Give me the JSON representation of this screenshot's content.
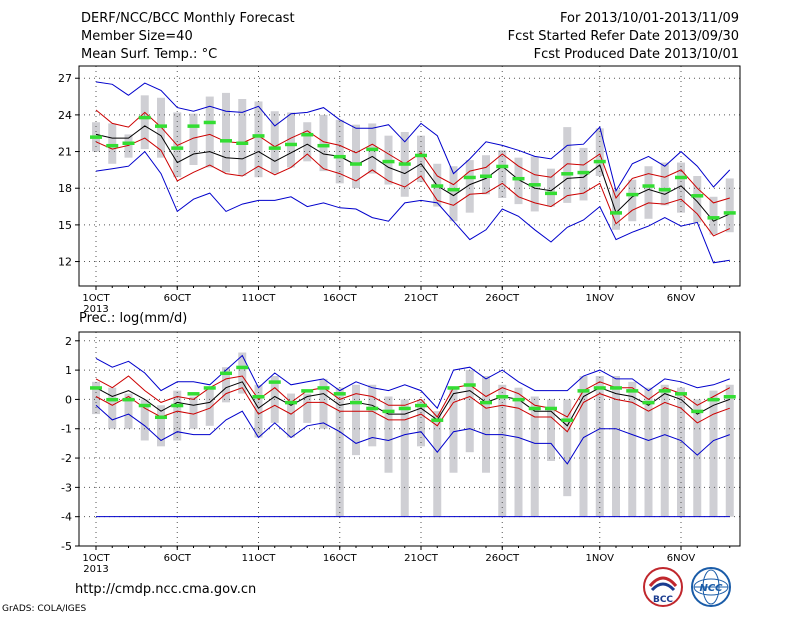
{
  "header": {
    "title": "DERF/NCC/BCC Monthly Forecast",
    "member": "Member Size=40",
    "variable": "Mean Surf. Temp.: °C",
    "period": "For 2013/10/01-2013/11/09",
    "refer": "Fcst Started Refer Date 2013/09/30",
    "produced": "Fcst Produced Date 2013/10/01"
  },
  "footer": {
    "url": "http://cmdp.ncc.cma.gov.cn",
    "grads": "GrADS: COLA/IGES",
    "logo_left": "BCC",
    "logo_right": "NCC"
  },
  "colors": {
    "envelope": "#0000cc",
    "spread": "#cc0000",
    "mean": "#000000",
    "median": "#33dd33",
    "range_bar": "#cfcfd4"
  },
  "chart_data": [
    {
      "type": "line",
      "name": "temperature",
      "title": "",
      "ylabel": "",
      "ylim": [
        10,
        28
      ],
      "yticks": [
        12,
        15,
        18,
        21,
        24,
        27
      ],
      "x": [
        1,
        2,
        3,
        4,
        5,
        6,
        7,
        8,
        9,
        10,
        11,
        12,
        13,
        14,
        15,
        16,
        17,
        18,
        19,
        20,
        21,
        22,
        23,
        24,
        25,
        26,
        27,
        28,
        29,
        30,
        31,
        32,
        33,
        34,
        35,
        36,
        37,
        38,
        39,
        40
      ],
      "xticks": [
        {
          "x": 1,
          "label": "1OCT",
          "year": "2013"
        },
        {
          "x": 6,
          "label": "6OCT"
        },
        {
          "x": 11,
          "label": "11OCT"
        },
        {
          "x": 16,
          "label": "16OCT"
        },
        {
          "x": 21,
          "label": "21OCT"
        },
        {
          "x": 26,
          "label": "26OCT"
        },
        {
          "x": 32,
          "label": "1NOV"
        },
        {
          "x": 37,
          "label": "6NOV"
        }
      ],
      "series": {
        "max": [
          26.7,
          26.5,
          25.6,
          26.6,
          26.0,
          24.6,
          24.3,
          24.7,
          24.3,
          24.2,
          24.7,
          23.1,
          24.1,
          24.2,
          24.6,
          23.6,
          22.9,
          22.9,
          23.2,
          21.8,
          23.3,
          22.3,
          19.2,
          20.4,
          21.8,
          21.5,
          21.1,
          20.6,
          20.4,
          21.5,
          21.6,
          23.0,
          17.8,
          20.0,
          20.6,
          19.8,
          21.0,
          19.8,
          18.1,
          19.5
        ],
        "upper": [
          24.4,
          23.3,
          23.0,
          24.2,
          23.0,
          21.5,
          22.1,
          22.4,
          21.8,
          21.7,
          22.3,
          21.4,
          22.1,
          22.7,
          21.8,
          21.5,
          20.9,
          21.6,
          20.8,
          20.0,
          20.9,
          19.0,
          18.3,
          19.4,
          19.7,
          20.8,
          19.8,
          19.1,
          18.9,
          20.0,
          19.9,
          20.8,
          17.2,
          18.8,
          19.2,
          18.9,
          19.5,
          18.0,
          16.8,
          17.2
        ],
        "mean": [
          22.4,
          22.1,
          22.1,
          23.1,
          22.3,
          20.1,
          20.8,
          21.0,
          20.5,
          20.4,
          21.0,
          20.2,
          20.9,
          21.6,
          20.8,
          20.6,
          19.9,
          20.6,
          19.7,
          19.2,
          20.0,
          18.2,
          17.4,
          18.3,
          18.8,
          19.8,
          18.7,
          18.0,
          17.8,
          18.8,
          18.9,
          19.9,
          16.0,
          17.3,
          17.9,
          17.5,
          18.2,
          16.9,
          15.3,
          15.9
        ],
        "lower": [
          21.8,
          21.2,
          21.5,
          22.1,
          21.1,
          18.6,
          19.3,
          19.9,
          19.2,
          19.0,
          19.8,
          19.1,
          19.7,
          20.8,
          19.6,
          19.2,
          18.6,
          19.5,
          18.6,
          18.1,
          19.0,
          17.0,
          16.6,
          17.5,
          17.6,
          18.4,
          17.3,
          16.8,
          16.5,
          17.4,
          17.6,
          18.4,
          15.1,
          16.2,
          16.8,
          16.7,
          17.1,
          15.9,
          14.1,
          14.7
        ],
        "min": [
          19.4,
          19.6,
          19.8,
          21.0,
          19.2,
          16.1,
          17.1,
          17.6,
          16.1,
          16.7,
          17.0,
          17.0,
          17.3,
          16.5,
          16.8,
          16.4,
          16.3,
          15.6,
          15.3,
          16.8,
          17.0,
          16.8,
          15.3,
          13.8,
          14.6,
          16.3,
          15.7,
          14.6,
          13.6,
          14.8,
          15.4,
          16.5,
          13.8,
          14.4,
          14.9,
          15.6,
          14.9,
          15.2,
          11.9,
          12.1
        ],
        "bar_top": [
          23.4,
          23.3,
          22.4,
          25.6,
          25.4,
          24.2,
          24.1,
          25.5,
          25.8,
          25.3,
          25.1,
          24.3,
          24.2,
          23.4,
          24.0,
          23.6,
          23.2,
          23.3,
          22.3,
          22.6,
          22.3,
          20.0,
          19.8,
          20.3,
          20.7,
          21.1,
          20.5,
          20.6,
          19.6,
          23.0,
          21.3,
          22.9,
          17.9,
          18.7,
          19.8,
          20.1,
          20.1,
          19.0,
          17.3,
          18.8
        ],
        "bar_bottom": [
          21.0,
          20.0,
          20.5,
          21.2,
          20.5,
          18.9,
          19.9,
          19.7,
          19.3,
          19.0,
          18.9,
          19.2,
          19.7,
          20.2,
          19.4,
          18.4,
          18.0,
          19.2,
          18.3,
          17.3,
          18.5,
          16.5,
          15.3,
          16.0,
          17.5,
          17.2,
          16.7,
          16.1,
          16.5,
          16.8,
          17.0,
          19.0,
          14.6,
          15.3,
          15.5,
          16.6,
          16.0,
          15.2,
          14.2,
          14.4
        ],
        "median": [
          22.2,
          21.5,
          21.7,
          23.8,
          23.1,
          21.3,
          23.1,
          23.4,
          21.9,
          21.7,
          22.3,
          21.3,
          21.6,
          22.4,
          21.5,
          20.6,
          20.0,
          21.2,
          20.2,
          20.0,
          20.7,
          18.2,
          17.9,
          18.9,
          19.0,
          19.8,
          18.8,
          18.3,
          17.6,
          19.2,
          19.3,
          20.2,
          16.0,
          17.5,
          18.2,
          17.9,
          18.9,
          17.4,
          15.6,
          16.0
        ]
      }
    },
    {
      "type": "line",
      "name": "precipitation",
      "title": "Prec.: log(mm/d)",
      "ylabel": "",
      "ylim": [
        -5,
        2.3
      ],
      "yticks": [
        -5,
        -4,
        -3,
        -2,
        -1,
        0,
        1,
        2
      ],
      "x": [
        1,
        2,
        3,
        4,
        5,
        6,
        7,
        8,
        9,
        10,
        11,
        12,
        13,
        14,
        15,
        16,
        17,
        18,
        19,
        20,
        21,
        22,
        23,
        24,
        25,
        26,
        27,
        28,
        29,
        30,
        31,
        32,
        33,
        34,
        35,
        36,
        37,
        38,
        39,
        40
      ],
      "xticks": [
        {
          "x": 1,
          "label": "1OCT",
          "year": "2013"
        },
        {
          "x": 6,
          "label": "6OCT"
        },
        {
          "x": 11,
          "label": "11OCT"
        },
        {
          "x": 16,
          "label": "16OCT"
        },
        {
          "x": 21,
          "label": "21OCT"
        },
        {
          "x": 26,
          "label": "26OCT"
        },
        {
          "x": 32,
          "label": "1NOV"
        },
        {
          "x": 37,
          "label": "6NOV"
        }
      ],
      "series": {
        "max": [
          1.4,
          1.1,
          1.3,
          0.9,
          0.3,
          0.6,
          0.6,
          0.5,
          1.0,
          1.5,
          0.4,
          0.9,
          0.5,
          0.6,
          0.7,
          0.3,
          0.6,
          0.4,
          0.3,
          0.5,
          0.3,
          -0.3,
          1.0,
          1.1,
          0.7,
          1.0,
          0.6,
          0.3,
          0.3,
          0.3,
          0.8,
          1.0,
          0.7,
          0.7,
          0.3,
          0.7,
          0.6,
          0.4,
          0.5,
          0.7
        ],
        "upper": [
          0.7,
          0.4,
          0.8,
          0.3,
          -0.1,
          0.1,
          0.0,
          0.4,
          0.7,
          0.8,
          0.0,
          0.4,
          -0.1,
          0.3,
          0.4,
          0.0,
          0.2,
          0.1,
          -0.2,
          -0.2,
          0.0,
          -0.6,
          0.4,
          0.5,
          0.1,
          0.4,
          0.2,
          -0.2,
          -0.3,
          -0.6,
          0.3,
          0.6,
          0.4,
          0.4,
          0.0,
          0.4,
          0.2,
          -0.2,
          0.1,
          0.4
        ],
        "mean": [
          0.4,
          0.1,
          0.3,
          0.0,
          -0.4,
          -0.1,
          -0.2,
          -0.1,
          0.4,
          0.6,
          -0.3,
          0.1,
          -0.2,
          0.1,
          0.2,
          -0.2,
          -0.1,
          -0.2,
          -0.5,
          -0.5,
          -0.3,
          -0.7,
          0.2,
          0.3,
          -0.1,
          0.1,
          0.0,
          -0.4,
          -0.4,
          -0.9,
          0.1,
          0.4,
          0.2,
          0.1,
          -0.2,
          0.2,
          0.0,
          -0.5,
          -0.2,
          0.0
        ],
        "lower": [
          0.1,
          -0.2,
          0.1,
          -0.3,
          -0.6,
          -0.4,
          -0.5,
          -0.3,
          0.2,
          0.4,
          -0.5,
          -0.2,
          -0.5,
          -0.1,
          -0.1,
          -0.4,
          -0.4,
          -0.4,
          -0.7,
          -0.7,
          -0.5,
          -0.9,
          -0.1,
          0.1,
          -0.3,
          -0.2,
          -0.3,
          -0.6,
          -0.6,
          -1.1,
          -0.1,
          0.2,
          0.0,
          -0.1,
          -0.4,
          -0.1,
          -0.3,
          -0.8,
          -0.5,
          -0.3
        ],
        "min": [
          -0.2,
          -0.7,
          -0.5,
          -0.9,
          -1.4,
          -1.1,
          -1.2,
          -1.2,
          -0.7,
          -0.4,
          -1.3,
          -0.8,
          -1.3,
          -0.9,
          -0.8,
          -1.1,
          -1.5,
          -1.3,
          -1.4,
          -1.2,
          -1.1,
          -1.8,
          -1.1,
          -1.0,
          -1.2,
          -1.2,
          -1.3,
          -1.5,
          -1.5,
          -2.2,
          -1.3,
          -1.0,
          -1.0,
          -1.2,
          -1.4,
          -1.2,
          -1.4,
          -1.9,
          -1.4,
          -1.2
        ],
        "bar_top": [
          0.6,
          0.4,
          0.2,
          0.0,
          -0.2,
          0.3,
          0.1,
          0.4,
          1.1,
          1.6,
          0.5,
          0.8,
          0.2,
          0.2,
          0.7,
          0.4,
          0.5,
          0.5,
          0.1,
          0.0,
          0.0,
          -0.4,
          0.4,
          1.0,
          0.8,
          0.5,
          0.4,
          0.1,
          0.0,
          0.0,
          0.8,
          0.8,
          0.8,
          0.6,
          0.4,
          0.5,
          0.4,
          0.0,
          0.3,
          0.5
        ],
        "bar_bottom": [
          -0.5,
          -1.0,
          -1.0,
          -1.4,
          -1.6,
          -1.4,
          -1.0,
          -0.9,
          -0.1,
          0.2,
          -1.3,
          -0.8,
          -1.3,
          -0.8,
          -1.0,
          -4.0,
          -1.9,
          -1.6,
          -2.5,
          -4.0,
          -1.6,
          -4.0,
          -2.5,
          -1.8,
          -2.5,
          -4.0,
          -4.0,
          -4.0,
          -2.1,
          -3.3,
          -4.0,
          -4.0,
          -4.0,
          -4.0,
          -4.0,
          -4.0,
          -4.0,
          -4.0,
          -4.0,
          -4.0
        ],
        "median": [
          0.4,
          0.0,
          0.0,
          -0.2,
          -0.6,
          -0.2,
          0.2,
          0.4,
          0.9,
          1.1,
          0.1,
          0.6,
          -0.1,
          0.3,
          0.4,
          0.2,
          -0.1,
          -0.3,
          -0.4,
          -0.3,
          -0.2,
          -0.7,
          0.4,
          0.5,
          -0.1,
          0.1,
          0.0,
          -0.3,
          -0.3,
          -0.7,
          0.3,
          0.4,
          0.4,
          0.3,
          -0.1,
          0.3,
          0.2,
          -0.4,
          0.0,
          0.1
        ],
        "floor": -4.0
      }
    }
  ]
}
